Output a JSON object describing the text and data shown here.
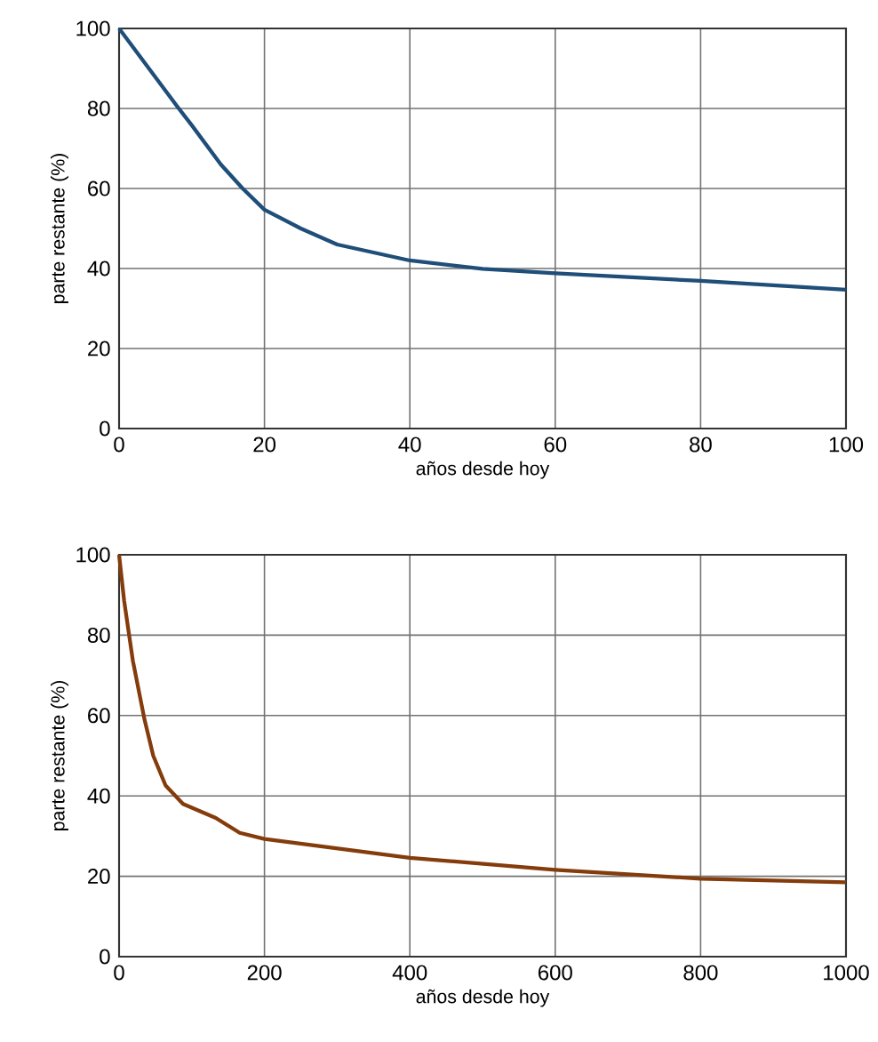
{
  "chart_data": [
    {
      "type": "line",
      "xlabel": "años desde hoy",
      "ylabel": "parte restante (%)",
      "xlim": [
        0,
        100
      ],
      "ylim": [
        0,
        100
      ],
      "xticks": [
        0,
        20,
        40,
        60,
        80,
        100
      ],
      "yticks": [
        0,
        20,
        40,
        60,
        80,
        100
      ],
      "grid": true,
      "x": [
        0,
        8,
        10,
        14,
        17,
        20,
        25,
        30,
        40,
        50,
        60,
        80,
        100
      ],
      "series": [
        {
          "color": "#1f4e79",
          "values": [
            100,
            80.5,
            75.8,
            66,
            60,
            54.7,
            50,
            46,
            42,
            39.9,
            38.8,
            36.9,
            34.7
          ]
        }
      ]
    },
    {
      "type": "line",
      "xlabel": "años desde hoy",
      "ylabel": "parte restante (%)",
      "xlim": [
        0,
        1000
      ],
      "ylim": [
        0,
        100
      ],
      "xticks": [
        0,
        200,
        400,
        600,
        800,
        1000
      ],
      "yticks": [
        0,
        20,
        40,
        60,
        80,
        100
      ],
      "grid": true,
      "x": [
        0,
        7,
        19,
        27,
        35,
        47,
        64,
        88,
        133,
        166,
        200,
        400,
        600,
        800,
        1000
      ],
      "series": [
        {
          "color": "#843c0c",
          "values": [
            100,
            88.5,
            73.6,
            66.3,
            59,
            50,
            42.6,
            38,
            34.5,
            30.8,
            29.3,
            24.6,
            21.6,
            19.4,
            18.5
          ]
        }
      ]
    }
  ]
}
